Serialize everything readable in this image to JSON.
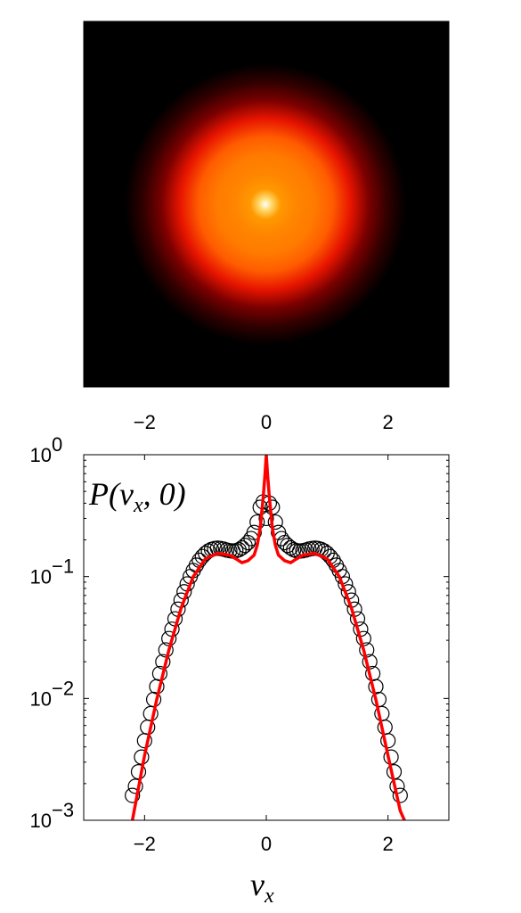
{
  "colors": {
    "heatmap_colormap": [
      "#000000",
      "#3d0000",
      "#7a0000",
      "#c40000",
      "#ff2200",
      "#ff6a00",
      "#ffa800",
      "#ffd24a",
      "#ffffff"
    ],
    "fit_line": "#ff0000",
    "markers": "#000000"
  },
  "chart_data": [
    {
      "type": "heatmap",
      "description": "2D velocity distribution P(vx, vy), radially symmetric with a peak at the origin and a bright ring",
      "xlim": [
        -3,
        3
      ],
      "ylim": [
        -3,
        3
      ],
      "xticks": [
        -2,
        0,
        2
      ],
      "xtick_labels": [
        "−2",
        "0",
        "2"
      ],
      "colormap": "hot",
      "radial_profile": {
        "r": [
          0,
          0.1,
          0.25,
          0.5,
          0.8,
          1.1,
          1.4,
          1.7,
          2.0,
          2.3
        ],
        "level": [
          1.0,
          0.9,
          0.72,
          0.68,
          0.66,
          0.6,
          0.45,
          0.25,
          0.1,
          0.0
        ]
      }
    },
    {
      "type": "scatter",
      "annotation_math": {
        "base": "P(v",
        "sub": "x",
        "rest": ", 0)"
      },
      "xlabel_math": {
        "base": "v",
        "sub": "x"
      },
      "xlim": [
        -3,
        3
      ],
      "ylim": [
        0.001,
        1
      ],
      "yscale": "log",
      "xticks": [
        -2,
        0,
        2
      ],
      "xtick_labels": [
        "−2",
        "0",
        "2"
      ],
      "yticks": [
        0.001,
        0.01,
        0.1,
        1
      ],
      "ytick_labels": [
        {
          "base": "10",
          "exp": "−3"
        },
        {
          "base": "10",
          "exp": "−2"
        },
        {
          "base": "10",
          "exp": "−1"
        },
        {
          "base": "10",
          "exp": "0"
        }
      ],
      "series": [
        {
          "style": "markers",
          "marker": "open-circle",
          "x": [
            -2.2,
            -2.15,
            -2.1,
            -2.05,
            -2.0,
            -1.95,
            -1.9,
            -1.85,
            -1.8,
            -1.75,
            -1.7,
            -1.65,
            -1.6,
            -1.55,
            -1.5,
            -1.45,
            -1.4,
            -1.35,
            -1.3,
            -1.25,
            -1.2,
            -1.15,
            -1.1,
            -1.05,
            -1.0,
            -0.95,
            -0.9,
            -0.85,
            -0.8,
            -0.75,
            -0.7,
            -0.65,
            -0.6,
            -0.55,
            -0.5,
            -0.45,
            -0.4,
            -0.35,
            -0.3,
            -0.25,
            -0.2,
            -0.15,
            -0.1,
            -0.05,
            0.0,
            0.05,
            0.1,
            0.15,
            0.2,
            0.25,
            0.3,
            0.35,
            0.4,
            0.45,
            0.5,
            0.55,
            0.6,
            0.65,
            0.7,
            0.75,
            0.8,
            0.85,
            0.9,
            0.95,
            1.0,
            1.05,
            1.1,
            1.15,
            1.2,
            1.25,
            1.3,
            1.35,
            1.4,
            1.45,
            1.5,
            1.55,
            1.6,
            1.65,
            1.7,
            1.75,
            1.8,
            1.85,
            1.9,
            1.95,
            2.0,
            2.05,
            2.1,
            2.15,
            2.2
          ],
          "y": [
            0.0016,
            0.0019,
            0.0025,
            0.0033,
            0.0045,
            0.0058,
            0.0075,
            0.0098,
            0.0125,
            0.016,
            0.02,
            0.025,
            0.031,
            0.037,
            0.045,
            0.054,
            0.064,
            0.075,
            0.087,
            0.1,
            0.112,
            0.124,
            0.136,
            0.146,
            0.155,
            0.162,
            0.167,
            0.17,
            0.171,
            0.17,
            0.168,
            0.165,
            0.163,
            0.162,
            0.163,
            0.166,
            0.172,
            0.18,
            0.19,
            0.205,
            0.23,
            0.28,
            0.37,
            0.41,
            0.3,
            0.4,
            0.37,
            0.28,
            0.23,
            0.205,
            0.19,
            0.18,
            0.172,
            0.166,
            0.163,
            0.162,
            0.163,
            0.165,
            0.168,
            0.17,
            0.171,
            0.17,
            0.167,
            0.162,
            0.155,
            0.146,
            0.136,
            0.124,
            0.112,
            0.1,
            0.087,
            0.075,
            0.064,
            0.054,
            0.045,
            0.037,
            0.031,
            0.025,
            0.02,
            0.016,
            0.0125,
            0.0098,
            0.0075,
            0.0058,
            0.0045,
            0.0033,
            0.0025,
            0.0019,
            0.0016
          ]
        },
        {
          "style": "line",
          "x": [
            -2.2,
            -2.0,
            -1.8,
            -1.6,
            -1.4,
            -1.2,
            -1.0,
            -0.8,
            -0.6,
            -0.5,
            -0.4,
            -0.3,
            -0.2,
            -0.15,
            -0.1,
            -0.05,
            -0.02,
            0.0,
            0.02,
            0.05,
            0.1,
            0.15,
            0.2,
            0.3,
            0.4,
            0.5,
            0.6,
            0.8,
            1.0,
            1.2,
            1.4,
            1.6,
            1.8,
            2.0,
            2.2,
            2.27
          ],
          "y": [
            0.001,
            0.0034,
            0.0098,
            0.025,
            0.055,
            0.1,
            0.14,
            0.155,
            0.15,
            0.14,
            0.13,
            0.135,
            0.15,
            0.18,
            0.25,
            0.45,
            0.7,
            1.0,
            0.7,
            0.45,
            0.25,
            0.18,
            0.15,
            0.135,
            0.13,
            0.14,
            0.15,
            0.155,
            0.14,
            0.1,
            0.055,
            0.025,
            0.0098,
            0.0034,
            0.0012,
            0.001
          ]
        }
      ]
    }
  ]
}
